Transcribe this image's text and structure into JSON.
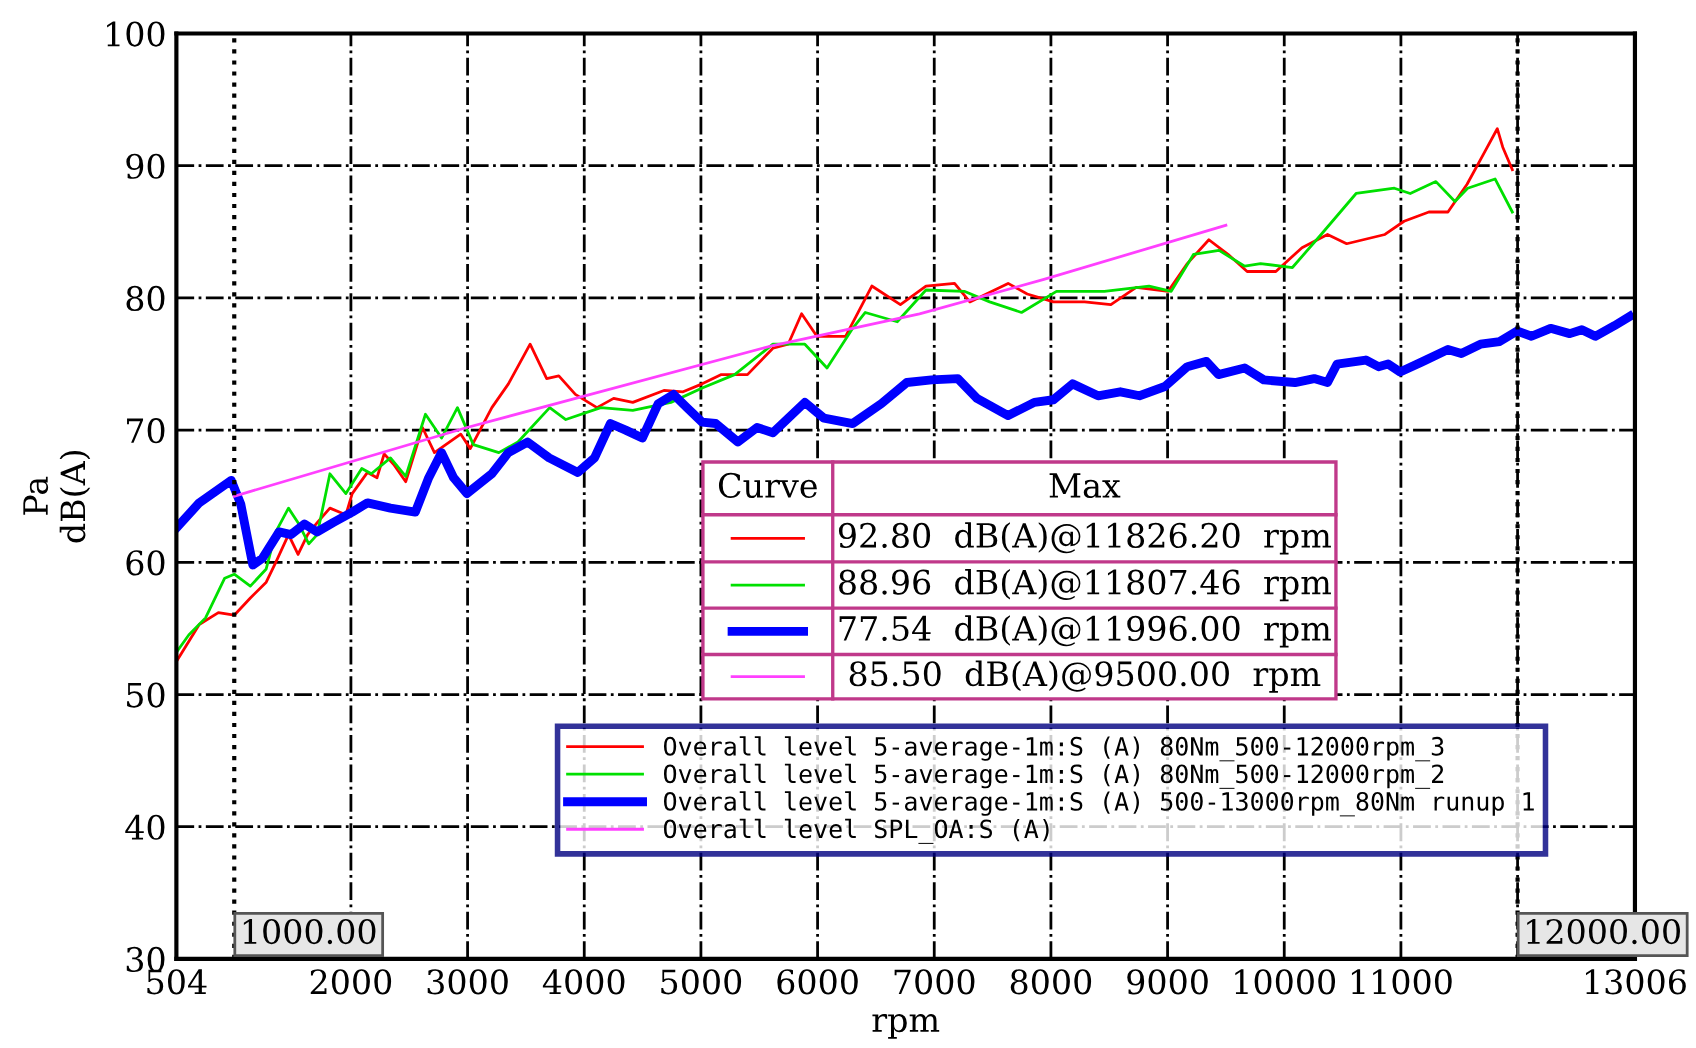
{
  "chart_data": {
    "type": "line",
    "xlabel": "rpm",
    "ylabel": "Pa\ndB(A)",
    "xlim": [
      504,
      13006
    ],
    "ylim": [
      30,
      100
    ],
    "xticks": [
      504,
      2000,
      3000,
      4000,
      5000,
      6000,
      7000,
      8000,
      9000,
      10000,
      11000,
      {
        "value": 12000,
        "label": null
      },
      13006
    ],
    "yticks": [
      30,
      40,
      50,
      60,
      70,
      80,
      90,
      100
    ],
    "grid": true,
    "legend": "bottom",
    "line_style": "solid",
    "marker": "none",
    "ref_lines": [
      {
        "axis": "x",
        "value": 1000,
        "label": "1000.00",
        "color": "#000000",
        "line_style": "dotted"
      },
      {
        "axis": "x",
        "value": 12000,
        "label": "12000.00",
        "color": "#000000",
        "line_style": "dotted"
      }
    ],
    "annotations": [
      "Curve",
      "Max",
      "92.80  dB(A)@11826.20  rpm",
      "88.96  dB(A)@11807.46  rpm",
      "77.54  dB(A)@11996.00  rpm",
      "85.50  dB(A)@9500.00  rpm"
    ],
    "series": [
      {
        "name": "Overall level 5-average-1m:S (A) 80Nm_500-12000rpm_3",
        "color": "#ff0000",
        "x": [
          504,
          700,
          864,
          1000,
          1138,
          1274,
          1356,
          1465,
          1547,
          1629,
          1711,
          1820,
          1957,
          2011,
          2142,
          2224,
          2285,
          2367,
          2470,
          2613,
          2716,
          2941,
          3023,
          3208,
          3350,
          3536,
          3678,
          3782,
          3924,
          4109,
          4252,
          4416,
          4683,
          4847,
          5011,
          5175,
          5399,
          5617,
          5748,
          5863,
          5994,
          6240,
          6465,
          6710,
          6929,
          7174,
          7305,
          7633,
          7797,
          8022,
          8289,
          8514,
          8731,
          9005,
          9169,
          9354,
          9518,
          9682,
          9928,
          10152,
          10371,
          10535,
          10863,
          11027,
          11240,
          11403,
          11567,
          11709,
          11826,
          11873,
          11955
        ],
        "values": [
          52.5,
          55.3,
          56.2,
          56.0,
          57.3,
          58.5,
          60.0,
          62.1,
          60.6,
          62.1,
          63.0,
          64.1,
          63.6,
          65.2,
          66.8,
          66.4,
          68.2,
          67.4,
          66.1,
          70.2,
          68.3,
          69.7,
          68.6,
          71.7,
          73.5,
          76.5,
          73.9,
          74.1,
          72.7,
          71.7,
          72.4,
          72.1,
          73.0,
          72.9,
          73.5,
          74.2,
          74.2,
          76.2,
          76.5,
          78.8,
          77.1,
          77.1,
          80.9,
          79.5,
          80.9,
          81.1,
          79.7,
          81.1,
          80.3,
          79.7,
          79.7,
          79.5,
          80.8,
          80.5,
          82.6,
          84.4,
          83.3,
          82.0,
          82.0,
          83.8,
          84.8,
          84.1,
          84.8,
          85.8,
          86.5,
          86.5,
          88.6,
          90.9,
          92.8,
          91.4,
          89.7
        ]
      },
      {
        "name": "Overall level 5-average-1m:S (A) 80Nm_500-12000rpm_2",
        "color": "#00e000",
        "x": [
          504,
          610,
          754,
          918,
          1000,
          1138,
          1274,
          1356,
          1465,
          1547,
          1639,
          1711,
          1820,
          1957,
          2093,
          2175,
          2339,
          2470,
          2639,
          2777,
          2913,
          3049,
          3268,
          3432,
          3704,
          3842,
          4142,
          4416,
          4743,
          5016,
          5289,
          5617,
          5891,
          6081,
          6301,
          6409,
          6683,
          6929,
          7257,
          7475,
          7748,
          8048,
          8458,
          8841,
          9031,
          9223,
          9441,
          9661,
          9797,
          10070,
          10316,
          10616,
          10944,
          11080,
          11300,
          11463,
          11572,
          11807,
          11955
        ],
        "values": [
          53.2,
          54.5,
          55.8,
          58.8,
          59.1,
          58.2,
          59.5,
          62.3,
          64.1,
          63.0,
          61.4,
          62.1,
          66.7,
          65.2,
          67.1,
          66.7,
          67.9,
          66.5,
          71.2,
          69.4,
          71.7,
          68.9,
          68.3,
          69.1,
          71.7,
          70.8,
          71.7,
          71.5,
          72.1,
          73.2,
          74.2,
          76.5,
          76.5,
          74.7,
          77.7,
          78.9,
          78.2,
          80.6,
          80.5,
          79.7,
          78.9,
          80.5,
          80.5,
          80.9,
          80.5,
          83.3,
          83.6,
          82.4,
          82.6,
          82.3,
          84.8,
          87.9,
          88.3,
          87.9,
          88.8,
          87.3,
          88.3,
          89.0,
          86.5
        ]
      },
      {
        "name": "Overall level 5-average-1m:S (A) 500-13000rpm_80Nm runup 1",
        "color": "#0000ff",
        "x": [
          504,
          700,
          974,
          1056,
          1159,
          1241,
          1384,
          1487,
          1602,
          1711,
          1847,
          2011,
          2142,
          2339,
          2552,
          2667,
          2777,
          2880,
          2995,
          3208,
          3350,
          3514,
          3699,
          3945,
          4088,
          4224,
          4355,
          4498,
          4634,
          4765,
          4880,
          5011,
          5126,
          5317,
          5481,
          5617,
          5891,
          6055,
          6301,
          6547,
          6765,
          6977,
          7202,
          7366,
          7633,
          7858,
          8022,
          8186,
          8404,
          8595,
          8759,
          8977,
          9169,
          9333,
          9436,
          9661,
          9825,
          10092,
          10256,
          10371,
          10453,
          10699,
          10808,
          10890,
          10993,
          11190,
          11403,
          11518,
          11682,
          11846,
          11996,
          12119,
          12283,
          12447,
          12551,
          12666,
          12830,
          12961
        ],
        "values": [
          62.6,
          64.5,
          66.2,
          64.4,
          59.8,
          60.3,
          62.3,
          62.1,
          62.9,
          62.3,
          63.0,
          63.8,
          64.5,
          64.1,
          63.8,
          66.4,
          68.3,
          66.4,
          65.2,
          66.7,
          68.3,
          69.1,
          67.9,
          66.8,
          67.9,
          70.5,
          70.0,
          69.4,
          72.0,
          72.7,
          71.7,
          70.6,
          70.5,
          69.1,
          70.2,
          69.8,
          72.1,
          70.9,
          70.5,
          72.0,
          73.6,
          73.8,
          73.9,
          72.4,
          71.1,
          72.1,
          72.3,
          73.5,
          72.6,
          72.9,
          72.6,
          73.3,
          74.8,
          75.2,
          74.2,
          74.7,
          73.8,
          73.6,
          73.9,
          73.6,
          75.0,
          75.3,
          74.8,
          75.0,
          74.4,
          75.2,
          76.1,
          75.8,
          76.5,
          76.7,
          77.5,
          77.1,
          77.7,
          77.3,
          77.6,
          77.1,
          77.9,
          78.6
        ]
      },
      {
        "name": "Overall level SPL_OA:S (A)",
        "color": "#ff40ff",
        "x": [
          1000,
          2995,
          5617,
          6874,
          7940,
          9500
        ],
        "values": [
          65.0,
          70.2,
          76.4,
          78.8,
          81.4,
          85.5
        ]
      }
    ]
  }
}
